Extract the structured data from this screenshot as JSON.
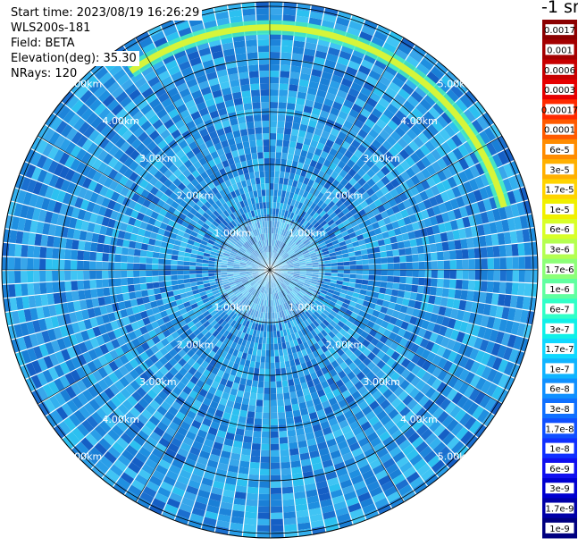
{
  "info": {
    "start_time": "Start time: 2023/08/19 16:26:29",
    "instrument": "WLS200s-181",
    "field": "Field: BETA",
    "elevation": "Elevation(deg): 35.30",
    "nrays": "NRays: 120"
  },
  "colorbar": {
    "title": "-1 sr",
    "ticks": [
      "0.0017",
      "0.001",
      "0.0006",
      "0.0003",
      "0.00017",
      "0.0001",
      "6e-5",
      "3e-5",
      "1.7e-5",
      "1e-5",
      "6e-6",
      "3e-6",
      "1.7e-6",
      "1e-6",
      "6e-7",
      "3e-7",
      "1.7e-7",
      "1e-7",
      "6e-8",
      "3e-8",
      "1.7e-8",
      "1e-8",
      "6e-9",
      "3e-9",
      "1.7e-9",
      "1e-9"
    ],
    "colors": [
      "#8b0000",
      "#a40000",
      "#c80000",
      "#e60000",
      "#ff2a00",
      "#ff5a00",
      "#ff8c00",
      "#ffb000",
      "#ffd400",
      "#f0f000",
      "#d8ff28",
      "#b4ff50",
      "#8cff78",
      "#60ffa0",
      "#30ffc8",
      "#10f0e8",
      "#10d8ff",
      "#10b4ff",
      "#1090ff",
      "#1070ff",
      "#1050ff",
      "#1030ff",
      "#1010ef",
      "#0000d0",
      "#0000a8",
      "#000080"
    ]
  },
  "chart_data": {
    "type": "heatmap",
    "projection": "polar PPI scan",
    "field": "BETA",
    "n_rays": 120,
    "range_ring_labels": [
      "1.00km",
      "2.00km",
      "3.00km",
      "4.00km",
      "5.00km"
    ],
    "range_rings_km": [
      1,
      2,
      3,
      4,
      5
    ],
    "grid": true,
    "features": [
      {
        "description": "arc of elevated backscatter",
        "range_km": 4.6,
        "azimuth_deg_from": -35,
        "azimuth_deg_to": 75,
        "value": "6e-6"
      }
    ],
    "dominant_value": "3e-8"
  }
}
